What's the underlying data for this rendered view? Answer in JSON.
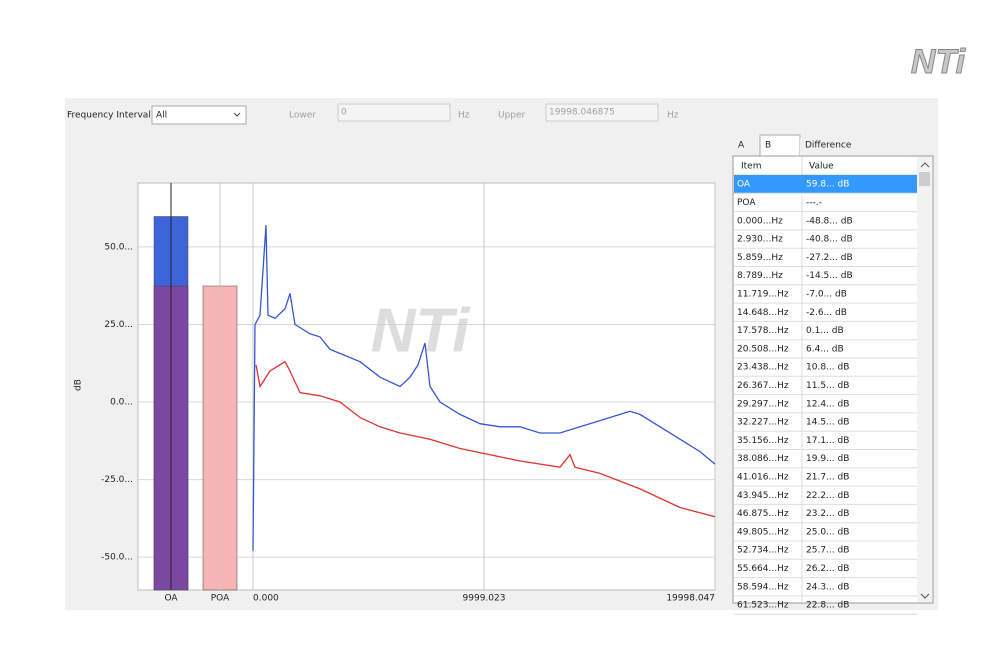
{
  "logo": "NTi",
  "watermark": "NTi",
  "controls": {
    "frequency_interval_label": "Frequency Interval",
    "frequency_interval_value": "All",
    "lower_label": "Lower",
    "lower_value": "0",
    "lower_unit": "Hz",
    "upper_label": "Upper",
    "upper_value": "19998.046875",
    "upper_unit": "Hz"
  },
  "chart": {
    "type": "line",
    "y_label": "dB",
    "ylim": [
      -60.6,
      70.6
    ],
    "yticks": [
      {
        "value": 50,
        "label": "50.0..."
      },
      {
        "value": 25,
        "label": "25.0..."
      },
      {
        "value": 0,
        "label": "0.0..."
      },
      {
        "value": -25,
        "label": "-25.0..."
      },
      {
        "value": -50,
        "label": "-50.0..."
      }
    ],
    "grid": true,
    "bars": {
      "categories": [
        "OA",
        "POA"
      ],
      "series": [
        {
          "color": "#3d64d9",
          "values": [
            59.8,
            null
          ]
        },
        {
          "color": "#7a48a2",
          "values": [
            37.4,
            null
          ]
        },
        {
          "color": "#f8b4b4",
          "values": [
            null,
            37.4
          ]
        }
      ]
    },
    "xlim": [
      0,
      19998.047
    ],
    "xticks": [
      {
        "value": 0,
        "label": "0.000"
      },
      9999.023,
      19998.047
    ],
    "series": [
      {
        "color": "#3557d6",
        "x": [
          0,
          87,
          303,
          563,
          649,
          952,
          1385,
          1602,
          1818,
          2467,
          2900,
          3333,
          3982,
          4632,
          5497,
          6363,
          6796,
          7142,
          7445,
          7662,
          8094,
          8960,
          9826,
          10692,
          11557,
          12423,
          13289,
          14154,
          15020,
          15886,
          16319,
          16752,
          17617,
          18483,
          19349,
          19998
        ],
        "values": [
          -48,
          25,
          28,
          57,
          28,
          27,
          30,
          35,
          25,
          22,
          21,
          17,
          15,
          13,
          8,
          5,
          8,
          12,
          19,
          5,
          0,
          -4,
          -7,
          -8,
          -8,
          -10,
          -10,
          -8,
          -6,
          -4,
          -3,
          -4,
          -8,
          -12,
          -16,
          -20
        ]
      },
      {
        "color": "#e0322e",
        "x": [
          130,
          303,
          736,
          1385,
          1602,
          2034,
          2900,
          3766,
          4632,
          5497,
          6363,
          7662,
          8960,
          10259,
          11557,
          13289,
          13722,
          13938,
          15020,
          16752,
          18483,
          19998
        ],
        "values": [
          12,
          5,
          10,
          13,
          10,
          3,
          2,
          0,
          -5,
          -8,
          -10,
          -12,
          -15,
          -17,
          -19,
          -21,
          -17,
          -21,
          -23,
          -28,
          -34,
          -37
        ]
      }
    ]
  },
  "tabs": [
    "A",
    "B",
    "Difference"
  ],
  "selected_tab": 1,
  "table": {
    "columns": [
      "Item",
      "Value"
    ],
    "selected_row": 0,
    "rows": [
      [
        "OA",
        "59.8... dB"
      ],
      [
        "POA",
        "---.-"
      ],
      [
        "0.000...Hz",
        "-48.8... dB"
      ],
      [
        "2.930...Hz",
        "-40.8... dB"
      ],
      [
        "5.859...Hz",
        "-27.2... dB"
      ],
      [
        "8.789...Hz",
        "-14.5... dB"
      ],
      [
        "11.719...Hz",
        "-7.0... dB"
      ],
      [
        "14.648...Hz",
        "-2.6... dB"
      ],
      [
        "17.578...Hz",
        "0.1... dB"
      ],
      [
        "20.508...Hz",
        "6.4... dB"
      ],
      [
        "23.438...Hz",
        "10.8... dB"
      ],
      [
        "26.367...Hz",
        "11.5... dB"
      ],
      [
        "29.297...Hz",
        "12.4... dB"
      ],
      [
        "32.227...Hz",
        "14.5... dB"
      ],
      [
        "35.156...Hz",
        "17.1... dB"
      ],
      [
        "38.086...Hz",
        "19.9... dB"
      ],
      [
        "41.016...Hz",
        "21.7... dB"
      ],
      [
        "43.945...Hz",
        "22.2... dB"
      ],
      [
        "46.875...Hz",
        "23.2... dB"
      ],
      [
        "49.805...Hz",
        "25.0... dB"
      ],
      [
        "52.734...Hz",
        "25.7... dB"
      ],
      [
        "55.664...Hz",
        "26.2... dB"
      ],
      [
        "58.594...Hz",
        "24.3... dB"
      ],
      [
        "61.523...Hz",
        "22.8... dB"
      ]
    ]
  }
}
